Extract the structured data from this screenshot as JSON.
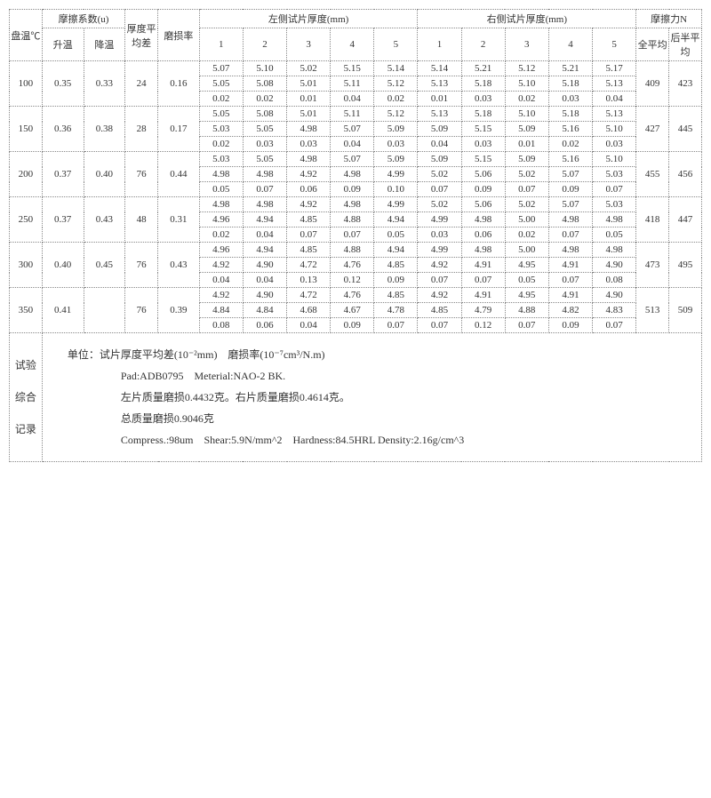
{
  "headers": {
    "col_temp": "盘温℃",
    "friction_coef": "摩擦系数(u)",
    "heat_up": "升温",
    "cool_down": "降温",
    "thickness_avg_diff": "厚度平均差",
    "wear_rate": "磨损率",
    "left_thickness": "左侧试片厚度(mm)",
    "right_thickness": "右侧试片厚度(mm)",
    "friction_force": "摩擦力N",
    "full_avg": "全平均",
    "second_half_avg": "后半平均",
    "n1": "1",
    "n2": "2",
    "n3": "3",
    "n4": "4",
    "n5": "5"
  },
  "rows": [
    {
      "temp": "100",
      "up": "0.35",
      "down": "0.33",
      "avg": "24",
      "wear": "0.16",
      "L": [
        [
          "5.07",
          "5.10",
          "5.02",
          "5.15",
          "5.14"
        ],
        [
          "5.05",
          "5.08",
          "5.01",
          "5.11",
          "5.12"
        ],
        [
          "0.02",
          "0.02",
          "0.01",
          "0.04",
          "0.02"
        ]
      ],
      "R": [
        [
          "5.14",
          "5.21",
          "5.12",
          "5.21",
          "5.17"
        ],
        [
          "5.13",
          "5.18",
          "5.10",
          "5.18",
          "5.13"
        ],
        [
          "0.01",
          "0.03",
          "0.02",
          "0.03",
          "0.04"
        ]
      ],
      "fFull": "409",
      "fHalf": "423"
    },
    {
      "temp": "150",
      "up": "0.36",
      "down": "0.38",
      "avg": "28",
      "wear": "0.17",
      "L": [
        [
          "5.05",
          "5.08",
          "5.01",
          "5.11",
          "5.12"
        ],
        [
          "5.03",
          "5.05",
          "4.98",
          "5.07",
          "5.09"
        ],
        [
          "0.02",
          "0.03",
          "0.03",
          "0.04",
          "0.03"
        ]
      ],
      "R": [
        [
          "5.13",
          "5.18",
          "5.10",
          "5.18",
          "5.13"
        ],
        [
          "5.09",
          "5.15",
          "5.09",
          "5.16",
          "5.10"
        ],
        [
          "0.04",
          "0.03",
          "0.01",
          "0.02",
          "0.03"
        ]
      ],
      "fFull": "427",
      "fHalf": "445"
    },
    {
      "temp": "200",
      "up": "0.37",
      "down": "0.40",
      "avg": "76",
      "wear": "0.44",
      "L": [
        [
          "5.03",
          "5.05",
          "4.98",
          "5.07",
          "5.09"
        ],
        [
          "4.98",
          "4.98",
          "4.92",
          "4.98",
          "4.99"
        ],
        [
          "0.05",
          "0.07",
          "0.06",
          "0.09",
          "0.10"
        ]
      ],
      "R": [
        [
          "5.09",
          "5.15",
          "5.09",
          "5.16",
          "5.10"
        ],
        [
          "5.02",
          "5.06",
          "5.02",
          "5.07",
          "5.03"
        ],
        [
          "0.07",
          "0.09",
          "0.07",
          "0.09",
          "0.07"
        ]
      ],
      "fFull": "455",
      "fHalf": "456"
    },
    {
      "temp": "250",
      "up": "0.37",
      "down": "0.43",
      "avg": "48",
      "wear": "0.31",
      "L": [
        [
          "4.98",
          "4.98",
          "4.92",
          "4.98",
          "4.99"
        ],
        [
          "4.96",
          "4.94",
          "4.85",
          "4.88",
          "4.94"
        ],
        [
          "0.02",
          "0.04",
          "0.07",
          "0.07",
          "0.05"
        ]
      ],
      "R": [
        [
          "5.02",
          "5.06",
          "5.02",
          "5.07",
          "5.03"
        ],
        [
          "4.99",
          "4.98",
          "5.00",
          "4.98",
          "4.98"
        ],
        [
          "0.03",
          "0.06",
          "0.02",
          "0.07",
          "0.05"
        ]
      ],
      "fFull": "418",
      "fHalf": "447"
    },
    {
      "temp": "300",
      "up": "0.40",
      "down": "0.45",
      "avg": "76",
      "wear": "0.43",
      "L": [
        [
          "4.96",
          "4.94",
          "4.85",
          "4.88",
          "4.94"
        ],
        [
          "4.92",
          "4.90",
          "4.72",
          "4.76",
          "4.85"
        ],
        [
          "0.04",
          "0.04",
          "0.13",
          "0.12",
          "0.09"
        ]
      ],
      "R": [
        [
          "4.99",
          "4.98",
          "5.00",
          "4.98",
          "4.98"
        ],
        [
          "4.92",
          "4.91",
          "4.95",
          "4.91",
          "4.90"
        ],
        [
          "0.07",
          "0.07",
          "0.05",
          "0.07",
          "0.08"
        ]
      ],
      "fFull": "473",
      "fHalf": "495"
    },
    {
      "temp": "350",
      "up": "0.41",
      "down": "",
      "avg": "76",
      "wear": "0.39",
      "L": [
        [
          "4.92",
          "4.90",
          "4.72",
          "4.76",
          "4.85"
        ],
        [
          "4.84",
          "4.84",
          "4.68",
          "4.67",
          "4.78"
        ],
        [
          "0.08",
          "0.06",
          "0.04",
          "0.09",
          "0.07"
        ]
      ],
      "R": [
        [
          "4.92",
          "4.91",
          "4.95",
          "4.91",
          "4.90"
        ],
        [
          "4.85",
          "4.79",
          "4.88",
          "4.82",
          "4.83"
        ],
        [
          "0.07",
          "0.12",
          "0.07",
          "0.09",
          "0.07"
        ]
      ],
      "fFull": "513",
      "fHalf": "509"
    }
  ],
  "summary": {
    "label": "试验综合记录",
    "units": "单位：试片厚度平均差(10⁻²mm)　磨损率(10⁻⁷cm³/N.m)",
    "pad": "Pad:ADB0795　Meterial:NAO-2 BK.",
    "mass": "左片质量磨损0.4432克。右片质量磨损0.4614克。",
    "total": "总质量磨损0.9046克",
    "props": "Compress.:98um　Shear:5.9N/mm^2　Hardness:84.5HRL Density:2.16g/cm^3"
  },
  "style": {
    "border_color": "#888",
    "text_color": "#333",
    "bg": "#ffffff",
    "font_size_pt": 11
  }
}
